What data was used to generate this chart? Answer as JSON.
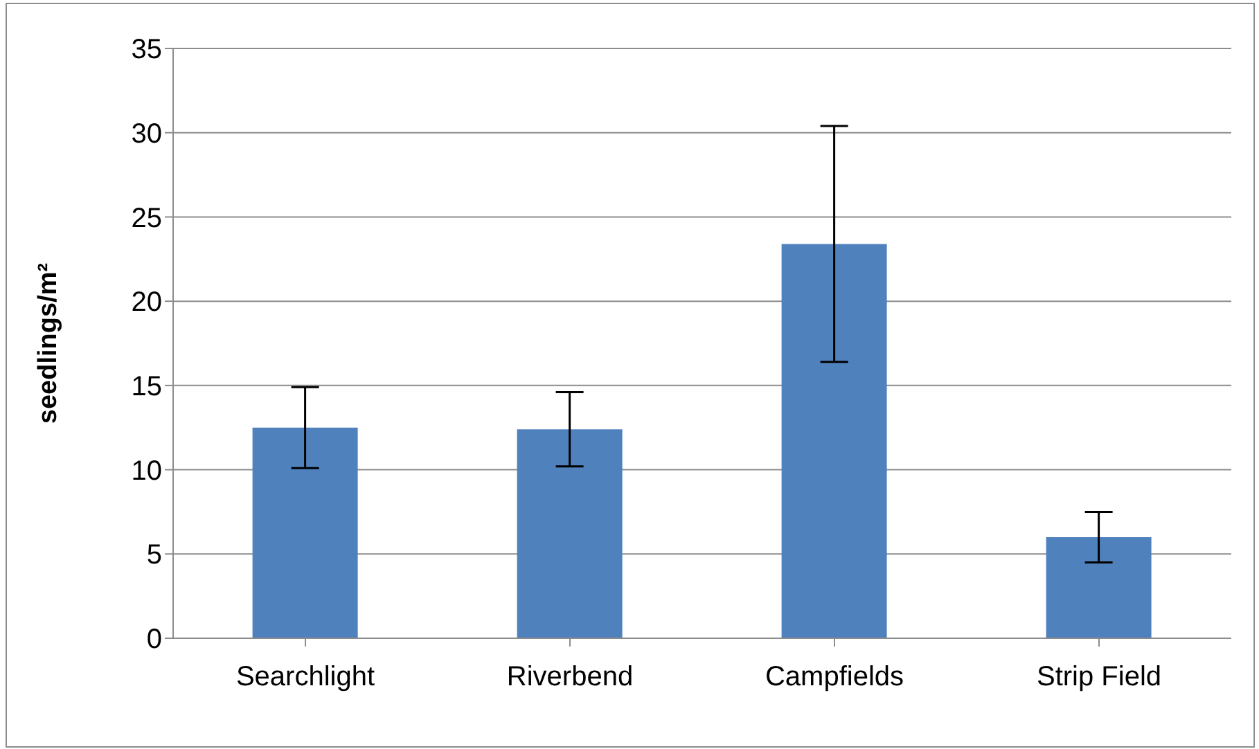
{
  "chart_data": {
    "type": "bar",
    "ylabel": "seedlings/m²",
    "categories": [
      "Searchlight",
      "Riverbend",
      "Campfields",
      "Strip Field"
    ],
    "values": [
      12.5,
      12.4,
      23.4,
      6.0
    ],
    "errors": [
      2.4,
      2.2,
      7.0,
      1.5
    ],
    "color": "#4f81bd",
    "ylim": [
      0,
      35
    ],
    "yticks": [
      0,
      5,
      10,
      15,
      20,
      25,
      30,
      35
    ],
    "grid": "y",
    "legend": false
  }
}
